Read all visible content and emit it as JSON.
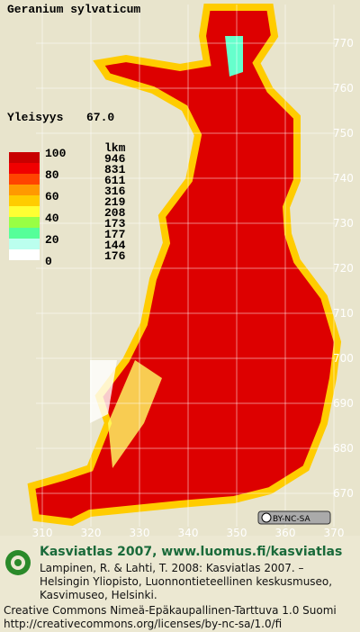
{
  "header": {
    "title": "Geranium sylvaticum"
  },
  "frequency": {
    "label": "Yleisyys",
    "value": "67.0"
  },
  "legend": {
    "scale_labels": [
      "100",
      "80",
      "60",
      "40",
      "20",
      "0"
    ],
    "count_header": "lkm",
    "counts": [
      946,
      831,
      611,
      316,
      219,
      208,
      173,
      177,
      144,
      176
    ],
    "colors": [
      "#c80000",
      "#f00000",
      "#ff4400",
      "#ff9900",
      "#ffcc00",
      "#ffff33",
      "#99ff44",
      "#55ff99",
      "#bbffee",
      "#ffffff"
    ]
  },
  "axes": {
    "northing": [
      "770",
      "760",
      "750",
      "740",
      "730",
      "720",
      "710",
      "700",
      "690",
      "680",
      "670"
    ],
    "easting": [
      "310",
      "320",
      "330",
      "340",
      "350",
      "360",
      "370"
    ]
  },
  "license_badge": "BY-NC-SA",
  "footer": {
    "heading": "Kasviatlas 2007, www.luomus.fi/kasviatlas",
    "citation": [
      "Lampinen, R. & Lahti, T. 2008: Kasviatlas 2007. –",
      "Helsingin Yliopisto, Luonnontieteellinen keskusmuseo,",
      "Kasvimuseo, Helsinki."
    ],
    "license": [
      "Creative Commons Nimeä-Epäkaupallinen-Tarttuva 1.0 Suomi",
      "http://creativecommons.org/licenses/by-nc-sa/1.0/fi"
    ]
  }
}
